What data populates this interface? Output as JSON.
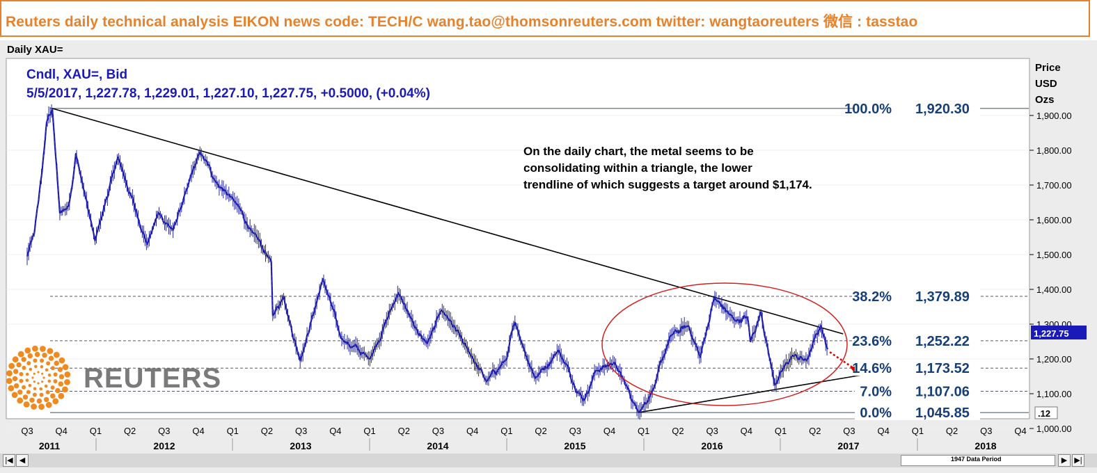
{
  "banner": {
    "text": "Reuters daily technical analysis  EIKON news code: TECH/C  wang.tao@thomsonreuters.com  twitter:  wangtaoreuters   微信 : tasstao"
  },
  "window": {
    "title": "Daily XAU="
  },
  "chart_header": {
    "line1": "Cndl, XAU=, Bid",
    "line2": "5/5/2017, 1,227.78, 1,229.01, 1,227.10, 1,227.75, +0.5000, (+0.04%)"
  },
  "chart_data": {
    "type": "candlestick",
    "y_unit": [
      "Price",
      "USD",
      "Ozs"
    ],
    "ylim": [
      950,
      2000
    ],
    "y_ticks": [
      "1,000.00",
      "1,100.00",
      "1,200.00",
      "1,300.00",
      "1,400.00",
      "1,500.00",
      "1,600.00",
      "1,700.00",
      "1,800.00",
      "1,900.00"
    ],
    "y_tick_values": [
      1000,
      1100,
      1200,
      1300,
      1400,
      1500,
      1600,
      1700,
      1800,
      1900
    ],
    "current_price_label": "1,227.75",
    "current_price": 1227.75,
    "scale_box": ".12",
    "x_quarters": [
      "Q3",
      "Q4",
      "Q1",
      "Q2",
      "Q3",
      "Q4",
      "Q1",
      "Q2",
      "Q3",
      "Q4",
      "Q1",
      "Q2",
      "Q3",
      "Q4",
      "Q1",
      "Q2",
      "Q3",
      "Q4",
      "Q1",
      "Q2",
      "Q3",
      "Q4",
      "Q1",
      "Q2",
      "Q3",
      "Q4",
      "Q1",
      "Q2",
      "Q3",
      "Q4"
    ],
    "x_years": [
      "2011",
      "2012",
      "2013",
      "2014",
      "2015",
      "2016",
      "2017",
      "2018"
    ],
    "fib_levels": [
      {
        "pct": "100.0%",
        "value": "1,920.30",
        "price": 1920.3,
        "style": "solid"
      },
      {
        "pct": "38.2%",
        "value": "1,379.89",
        "price": 1379.89,
        "style": "dashed"
      },
      {
        "pct": "23.6%",
        "value": "1,252.22",
        "price": 1252.22,
        "style": "dashed"
      },
      {
        "pct": "14.6%",
        "value": "1,173.52",
        "price": 1173.52,
        "style": "dashed"
      },
      {
        "pct": "7.0%",
        "value": "1,107.06",
        "price": 1107.06,
        "style": "dashed"
      },
      {
        "pct": "0.0%",
        "value": "1,045.85",
        "price": 1045.85,
        "style": "solid"
      }
    ],
    "price_path": [
      [
        "2011-07-01",
        1495
      ],
      [
        "2011-07-20",
        1560
      ],
      [
        "2011-08-10",
        1740
      ],
      [
        "2011-08-22",
        1880
      ],
      [
        "2011-09-06",
        1920
      ],
      [
        "2011-09-26",
        1620
      ],
      [
        "2011-10-20",
        1640
      ],
      [
        "2011-11-08",
        1790
      ],
      [
        "2011-12-29",
        1540
      ],
      [
        "2012-02-28",
        1780
      ],
      [
        "2012-05-16",
        1530
      ],
      [
        "2012-06-15",
        1620
      ],
      [
        "2012-07-24",
        1570
      ],
      [
        "2012-08-31",
        1690
      ],
      [
        "2012-10-04",
        1795
      ],
      [
        "2012-11-15",
        1710
      ],
      [
        "2012-12-31",
        1660
      ],
      [
        "2013-02-20",
        1565
      ],
      [
        "2013-04-12",
        1480
      ],
      [
        "2013-04-16",
        1325
      ],
      [
        "2013-05-15",
        1380
      ],
      [
        "2013-06-28",
        1195
      ],
      [
        "2013-08-28",
        1430
      ],
      [
        "2013-10-15",
        1260
      ],
      [
        "2013-12-31",
        1200
      ],
      [
        "2014-03-17",
        1390
      ],
      [
        "2014-04-30",
        1290
      ],
      [
        "2014-06-02",
        1245
      ],
      [
        "2014-07-10",
        1340
      ],
      [
        "2014-09-30",
        1205
      ],
      [
        "2014-11-07",
        1135
      ],
      [
        "2014-12-31",
        1200
      ],
      [
        "2015-01-22",
        1305
      ],
      [
        "2015-03-17",
        1145
      ],
      [
        "2015-05-18",
        1225
      ],
      [
        "2015-07-24",
        1080
      ],
      [
        "2015-08-24",
        1165
      ],
      [
        "2015-10-14",
        1190
      ],
      [
        "2015-12-17",
        1048
      ],
      [
        "2016-01-29",
        1120
      ],
      [
        "2016-03-11",
        1265
      ],
      [
        "2016-04-29",
        1295
      ],
      [
        "2016-05-30",
        1205
      ],
      [
        "2016-07-06",
        1375
      ],
      [
        "2016-08-31",
        1310
      ],
      [
        "2016-10-03",
        1320
      ],
      [
        "2016-10-11",
        1250
      ],
      [
        "2016-11-08",
        1335
      ],
      [
        "2016-12-15",
        1125
      ],
      [
        "2017-01-31",
        1210
      ],
      [
        "2017-03-10",
        1195
      ],
      [
        "2017-04-17",
        1295
      ],
      [
        "2017-05-05",
        1227.75
      ]
    ],
    "trendlines": [
      {
        "name": "upper-trendline",
        "from": [
          "2011-09-06",
          1920.3
        ],
        "to": [
          "2017-06-15",
          1272
        ]
      },
      {
        "name": "lower-trendline",
        "from": [
          "2015-12-17",
          1045.85
        ],
        "to": [
          "2017-07-31",
          1153
        ]
      }
    ],
    "projection_to": [
      "2017-07-15",
      1160
    ]
  },
  "annotation": {
    "line1": "On the daily chart, the metal seems to be",
    "line2": "consolidating within a triangle, the lower",
    "line3": "trendline of which suggests a target around $1,174."
  },
  "logo": {
    "text": "REUTERS"
  },
  "scrollbar": {
    "period_label": "1947 Data Period"
  },
  "colors": {
    "banner": "#e8822a",
    "header_text": "#1a1ab8",
    "fib_text": "#163f78",
    "circle": "#d42020",
    "price_box": "#1a1ab8",
    "projection": "#e00000"
  }
}
